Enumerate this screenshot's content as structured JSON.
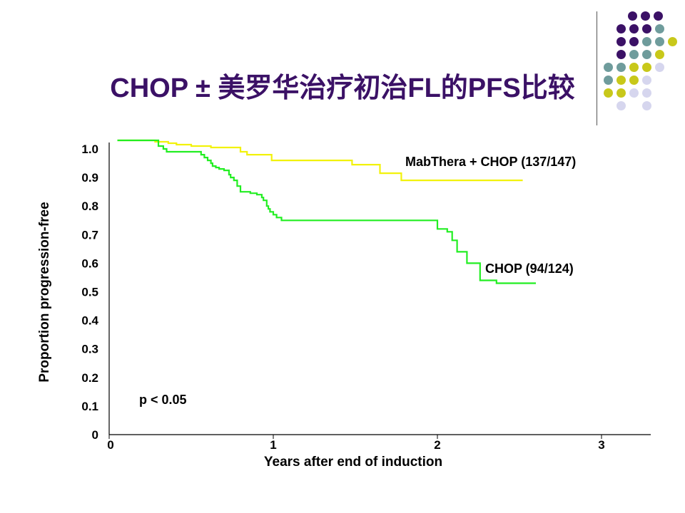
{
  "slide": {
    "title": "CHOP ± 美罗华治疗初治FL的PFS比较"
  },
  "decoration": {
    "colors": {
      "purple": "#3b1166",
      "teal": "#6f9c9c",
      "olive": "#c8c81a",
      "lavender": "#d6d6ee"
    },
    "dot_rows": [
      [
        "",
        "purple",
        "purple",
        "purple",
        ""
      ],
      [
        "",
        "purple",
        "purple",
        "purple",
        "teal"
      ],
      [
        "",
        "purple",
        "purple",
        "teal",
        "teal",
        "olive"
      ],
      [
        "",
        "purple",
        "teal",
        "teal",
        "olive",
        ""
      ],
      [
        "teal",
        "teal",
        "olive",
        "olive",
        "lavender"
      ],
      [
        "teal",
        "olive",
        "olive",
        "lavender",
        ""
      ],
      [
        "olive",
        "olive",
        "lavender",
        "lavender",
        ""
      ],
      [
        "",
        "lavender",
        "",
        "lavender",
        ""
      ]
    ]
  },
  "chart_data": {
    "type": "line",
    "step": true,
    "xlabel": "Years after end of induction",
    "ylabel": "Proportion progression-free",
    "xlim": [
      0,
      3.3
    ],
    "ylim": [
      0,
      1.04
    ],
    "x_ticks": [
      0,
      1,
      2,
      3
    ],
    "y_ticks": [
      0,
      0.1,
      0.2,
      0.3,
      0.4,
      0.5,
      0.6,
      0.7,
      0.8,
      0.9,
      1.0
    ],
    "x_tick_labels": [
      "0",
      "1",
      "2",
      "3"
    ],
    "y_tick_labels": [
      "0",
      "0.1",
      "0.2",
      "0.3",
      "0.4",
      "0.5",
      "0.6",
      "0.7",
      "0.8",
      "0.9",
      "1.0"
    ],
    "annotation": "p < 0.05",
    "series": [
      {
        "name": "MabThera + CHOP (137/147)",
        "color": "#f2f20a",
        "x": [
          0.05,
          0.28,
          0.36,
          0.41,
          0.5,
          0.62,
          0.8,
          0.84,
          0.99,
          1.48,
          1.65,
          1.78,
          2.52
        ],
        "y": [
          1.03,
          1.025,
          1.02,
          1.015,
          1.01,
          1.005,
          0.99,
          0.98,
          0.96,
          0.945,
          0.915,
          0.89,
          0.89
        ]
      },
      {
        "name": "CHOP (94/124)",
        "color": "#22ee22",
        "x": [
          0.05,
          0.3,
          0.33,
          0.35,
          0.56,
          0.58,
          0.6,
          0.62,
          0.63,
          0.65,
          0.67,
          0.7,
          0.73,
          0.74,
          0.76,
          0.78,
          0.8,
          0.83,
          0.86,
          0.9,
          0.93,
          0.94,
          0.96,
          0.97,
          0.98,
          1.0,
          1.02,
          1.05,
          1.08,
          1.5,
          2.0,
          2.06,
          2.09,
          2.12,
          2.18,
          2.26,
          2.36,
          2.6
        ],
        "y": [
          1.03,
          1.01,
          1.0,
          0.99,
          0.98,
          0.97,
          0.96,
          0.95,
          0.94,
          0.935,
          0.93,
          0.925,
          0.91,
          0.9,
          0.89,
          0.87,
          0.85,
          0.85,
          0.845,
          0.84,
          0.83,
          0.82,
          0.8,
          0.79,
          0.78,
          0.77,
          0.76,
          0.75,
          0.75,
          0.75,
          0.72,
          0.71,
          0.68,
          0.64,
          0.6,
          0.54,
          0.53,
          0.53
        ]
      }
    ]
  }
}
